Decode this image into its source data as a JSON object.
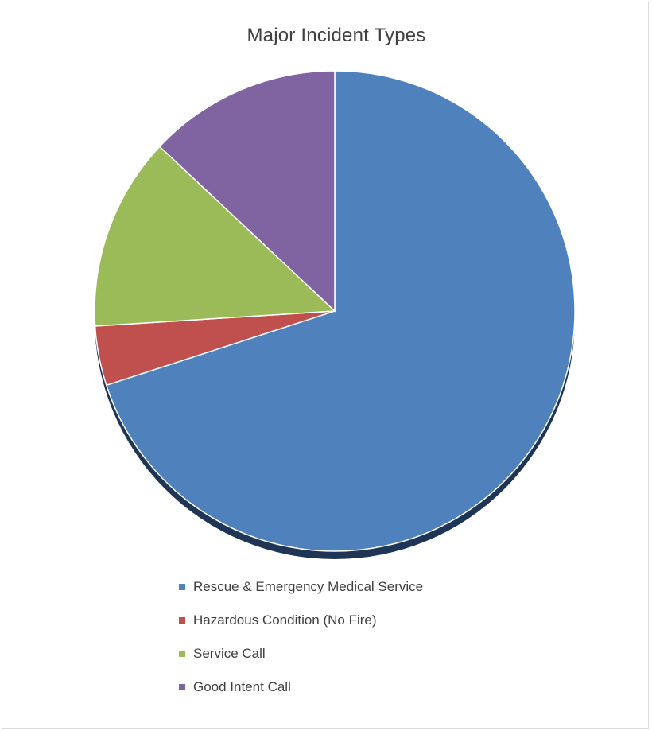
{
  "chart_data": {
    "type": "pie",
    "title": "Major Incident Types",
    "categories": [
      "Rescue & Emergency Medical Service",
      "Hazardous Condition (No Fire)",
      "Service Call",
      "Good Intent Call"
    ],
    "values": [
      70,
      4,
      13,
      13
    ],
    "colors": [
      "#4F81BD",
      "#C0504D",
      "#9BBB59",
      "#8064A2"
    ],
    "legend_position": "bottom"
  }
}
